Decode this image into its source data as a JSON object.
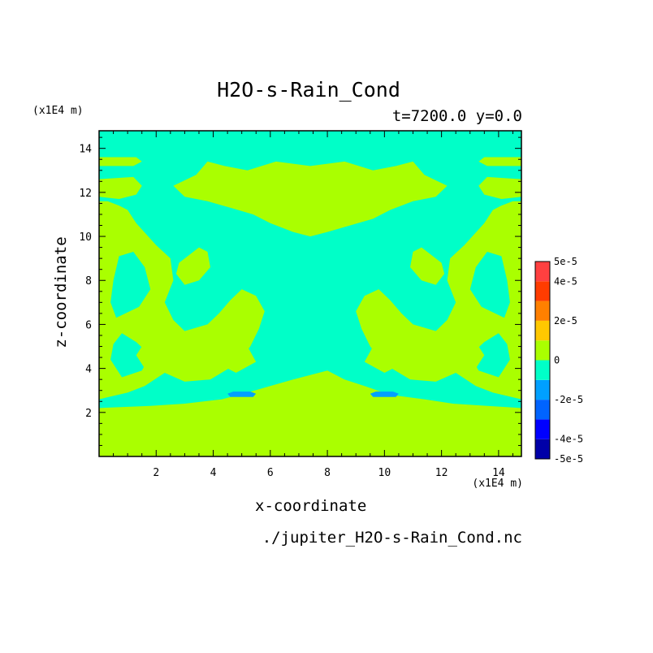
{
  "chart_data": {
    "type": "heatmap",
    "title": "H2O-s-Rain_Cond",
    "subtitle": "t=7200.0 y=0.0",
    "xlabel": "x-coordinate",
    "ylabel": "z-coordinate",
    "x_unit": "(x1E4 m)",
    "y_unit": "(x1E4 m)",
    "source_label": "./jupiter_H2O-s-Rain_Cond.nc",
    "xlim": [
      0,
      14.8
    ],
    "ylim": [
      0,
      14.8
    ],
    "xticks": [
      2,
      4,
      6,
      8,
      10,
      12,
      14
    ],
    "yticks": [
      2,
      4,
      6,
      8,
      10,
      12,
      14
    ],
    "background_value_color": "#00ffc8",
    "colorbar": {
      "levels": [
        -5e-05,
        -4e-05,
        -3e-05,
        -2e-05,
        -1e-05,
        0,
        1e-05,
        2e-05,
        3e-05,
        4e-05,
        5e-05
      ],
      "colors": [
        "#0000a8",
        "#0000ff",
        "#0064ff",
        "#00a0ff",
        "#00ffc8",
        "#aaff00",
        "#ffc800",
        "#ff8000",
        "#ff3c00",
        "#ff4040"
      ],
      "labels": [
        "-5e-5",
        "-4e-5",
        "-2e-5",
        "0",
        "2e-5",
        "4e-5",
        "5e-5"
      ],
      "label_values": [
        -5e-05,
        -4e-05,
        -2e-05,
        0,
        2e-05,
        4e-05,
        5e-05
      ]
    },
    "regions": [
      {
        "name": "bottom-band",
        "color": "#aaff00",
        "points": [
          [
            0,
            0
          ],
          [
            14.8,
            0
          ],
          [
            14.8,
            2.2
          ],
          [
            13.6,
            2.3
          ],
          [
            12.4,
            2.4
          ],
          [
            11.4,
            2.6
          ],
          [
            10.2,
            2.8
          ],
          [
            9.3,
            3.2
          ],
          [
            8.6,
            3.5
          ],
          [
            8.0,
            3.9
          ],
          [
            7.4,
            3.7
          ],
          [
            6.8,
            3.5
          ],
          [
            6.0,
            3.2
          ],
          [
            5.2,
            2.9
          ],
          [
            4.3,
            2.6
          ],
          [
            3.0,
            2.4
          ],
          [
            1.8,
            2.3
          ],
          [
            0,
            2.2
          ]
        ]
      },
      {
        "name": "left-mass",
        "color": "#aaff00",
        "points": [
          [
            0,
            2.6
          ],
          [
            1.0,
            2.9
          ],
          [
            1.6,
            3.2
          ],
          [
            2.3,
            3.8
          ],
          [
            3.0,
            3.4
          ],
          [
            3.9,
            3.5
          ],
          [
            4.8,
            4.2
          ],
          [
            5.3,
            5.0
          ],
          [
            5.6,
            5.8
          ],
          [
            5.8,
            6.6
          ],
          [
            5.5,
            7.3
          ],
          [
            5.0,
            7.6
          ],
          [
            4.6,
            7.1
          ],
          [
            4.2,
            6.5
          ],
          [
            3.8,
            6.0
          ],
          [
            3.0,
            5.7
          ],
          [
            2.6,
            6.2
          ],
          [
            2.3,
            7.0
          ],
          [
            2.6,
            8.0
          ],
          [
            2.5,
            9.0
          ],
          [
            2.0,
            9.6
          ],
          [
            1.3,
            10.6
          ],
          [
            1.0,
            11.2
          ],
          [
            0.7,
            11.4
          ],
          [
            0.3,
            11.6
          ],
          [
            0,
            11.6
          ]
        ]
      },
      {
        "name": "left-hole-1",
        "color": "#00ffc8",
        "points": [
          [
            0.8,
            3.6
          ],
          [
            1.5,
            3.9
          ],
          [
            1.8,
            4.6
          ],
          [
            1.3,
            5.2
          ],
          [
            0.8,
            5.6
          ],
          [
            0.5,
            5.1
          ],
          [
            0.4,
            4.4
          ]
        ]
      },
      {
        "name": "left-hole-2",
        "color": "#00ffc8",
        "points": [
          [
            0.6,
            6.3
          ],
          [
            1.4,
            6.8
          ],
          [
            1.8,
            7.6
          ],
          [
            1.6,
            8.6
          ],
          [
            1.2,
            9.3
          ],
          [
            0.7,
            9.1
          ],
          [
            0.5,
            8.0
          ],
          [
            0.4,
            7.0
          ]
        ]
      },
      {
        "name": "left-blob",
        "color": "#aaff00",
        "points": [
          [
            1.6,
            4.0
          ],
          [
            2.1,
            4.5
          ],
          [
            2.5,
            5.2
          ],
          [
            2.2,
            5.6
          ],
          [
            1.6,
            5.2
          ],
          [
            1.3,
            4.6
          ]
        ]
      },
      {
        "name": "center-left-blob",
        "color": "#aaff00",
        "points": [
          [
            2.8,
            8.8
          ],
          [
            3.5,
            9.5
          ],
          [
            3.8,
            9.3
          ],
          [
            3.9,
            8.6
          ],
          [
            3.5,
            8.0
          ],
          [
            3.0,
            7.8
          ],
          [
            2.7,
            8.3
          ]
        ]
      },
      {
        "name": "center-left-blob-2",
        "color": "#aaff00",
        "points": [
          [
            4.8,
            3.8
          ],
          [
            5.5,
            4.3
          ],
          [
            5.2,
            5.0
          ],
          [
            4.6,
            5.2
          ],
          [
            4.2,
            4.8
          ],
          [
            4.2,
            4.2
          ]
        ]
      },
      {
        "name": "upper-left",
        "color": "#aaff00",
        "points": [
          [
            0,
            12.6
          ],
          [
            1.2,
            12.7
          ],
          [
            1.5,
            12.3
          ],
          [
            1.3,
            11.9
          ],
          [
            0.7,
            11.7
          ],
          [
            0,
            11.8
          ]
        ]
      },
      {
        "name": "top-left-strip",
        "color": "#aaff00",
        "points": [
          [
            0,
            13.6
          ],
          [
            1.3,
            13.6
          ],
          [
            1.5,
            13.4
          ],
          [
            1.2,
            13.2
          ],
          [
            0,
            13.2
          ]
        ]
      },
      {
        "name": "top-center",
        "color": "#aaff00",
        "points": [
          [
            2.6,
            12.3
          ],
          [
            3.4,
            12.8
          ],
          [
            3.8,
            13.4
          ],
          [
            4.4,
            13.2
          ],
          [
            5.2,
            13.0
          ],
          [
            6.2,
            13.4
          ],
          [
            7.4,
            13.2
          ],
          [
            8.6,
            13.4
          ],
          [
            9.6,
            13.0
          ],
          [
            10.4,
            13.2
          ],
          [
            11.0,
            13.4
          ],
          [
            11.4,
            12.8
          ],
          [
            12.2,
            12.3
          ],
          [
            11.8,
            11.8
          ],
          [
            11.0,
            11.6
          ],
          [
            10.2,
            11.2
          ],
          [
            9.6,
            10.8
          ],
          [
            8.8,
            10.5
          ],
          [
            8.0,
            10.2
          ],
          [
            7.4,
            10.0
          ],
          [
            6.8,
            10.2
          ],
          [
            6.0,
            10.6
          ],
          [
            5.4,
            11.0
          ],
          [
            4.6,
            11.3
          ],
          [
            3.8,
            11.6
          ],
          [
            3.0,
            11.8
          ]
        ]
      },
      {
        "name": "top-right-strip",
        "color": "#aaff00",
        "points": [
          [
            14.8,
            13.6
          ],
          [
            13.5,
            13.6
          ],
          [
            13.3,
            13.4
          ],
          [
            13.6,
            13.2
          ],
          [
            14.8,
            13.2
          ]
        ]
      },
      {
        "name": "upper-right",
        "color": "#aaff00",
        "points": [
          [
            14.8,
            12.6
          ],
          [
            13.6,
            12.7
          ],
          [
            13.3,
            12.3
          ],
          [
            13.5,
            11.9
          ],
          [
            14.1,
            11.7
          ],
          [
            14.8,
            11.8
          ]
        ]
      },
      {
        "name": "right-mass",
        "color": "#aaff00",
        "points": [
          [
            14.8,
            2.6
          ],
          [
            13.8,
            2.9
          ],
          [
            13.2,
            3.2
          ],
          [
            12.5,
            3.8
          ],
          [
            11.8,
            3.4
          ],
          [
            10.9,
            3.5
          ],
          [
            10.0,
            4.2
          ],
          [
            9.5,
            5.0
          ],
          [
            9.2,
            5.8
          ],
          [
            9.0,
            6.6
          ],
          [
            9.3,
            7.3
          ],
          [
            9.8,
            7.6
          ],
          [
            10.2,
            7.1
          ],
          [
            10.6,
            6.5
          ],
          [
            11.0,
            6.0
          ],
          [
            11.8,
            5.7
          ],
          [
            12.2,
            6.2
          ],
          [
            12.5,
            7.0
          ],
          [
            12.2,
            8.0
          ],
          [
            12.3,
            9.0
          ],
          [
            12.8,
            9.6
          ],
          [
            13.5,
            10.6
          ],
          [
            13.8,
            11.2
          ],
          [
            14.1,
            11.4
          ],
          [
            14.5,
            11.6
          ],
          [
            14.8,
            11.6
          ]
        ]
      },
      {
        "name": "right-hole-1",
        "color": "#00ffc8",
        "points": [
          [
            14.0,
            3.6
          ],
          [
            13.3,
            3.9
          ],
          [
            13.0,
            4.6
          ],
          [
            13.5,
            5.2
          ],
          [
            14.0,
            5.6
          ],
          [
            14.3,
            5.1
          ],
          [
            14.4,
            4.4
          ]
        ]
      },
      {
        "name": "right-hole-2",
        "color": "#00ffc8",
        "points": [
          [
            14.2,
            6.3
          ],
          [
            13.4,
            6.8
          ],
          [
            13.0,
            7.6
          ],
          [
            13.2,
            8.6
          ],
          [
            13.6,
            9.3
          ],
          [
            14.1,
            9.1
          ],
          [
            14.3,
            8.0
          ],
          [
            14.4,
            7.0
          ]
        ]
      },
      {
        "name": "right-blob",
        "color": "#aaff00",
        "points": [
          [
            13.2,
            4.0
          ],
          [
            12.7,
            4.5
          ],
          [
            12.3,
            5.2
          ],
          [
            12.6,
            5.6
          ],
          [
            13.2,
            5.2
          ],
          [
            13.5,
            4.6
          ]
        ]
      },
      {
        "name": "center-right-blob",
        "color": "#aaff00",
        "points": [
          [
            12.0,
            8.8
          ],
          [
            11.3,
            9.5
          ],
          [
            11.0,
            9.3
          ],
          [
            10.9,
            8.6
          ],
          [
            11.3,
            8.0
          ],
          [
            11.8,
            7.8
          ],
          [
            12.1,
            8.3
          ]
        ]
      },
      {
        "name": "center-right-blob-2",
        "color": "#aaff00",
        "points": [
          [
            10.0,
            3.8
          ],
          [
            9.3,
            4.3
          ],
          [
            9.6,
            5.0
          ],
          [
            10.2,
            5.2
          ],
          [
            10.6,
            4.8
          ],
          [
            10.6,
            4.2
          ]
        ]
      },
      {
        "name": "blue-spot-left",
        "color": "#00a0ff",
        "points": [
          [
            4.6,
            2.7
          ],
          [
            5.4,
            2.7
          ],
          [
            5.5,
            2.85
          ],
          [
            5.3,
            2.95
          ],
          [
            4.7,
            2.95
          ],
          [
            4.5,
            2.85
          ]
        ]
      },
      {
        "name": "blue-spot-right",
        "color": "#00a0ff",
        "points": [
          [
            9.6,
            2.7
          ],
          [
            10.4,
            2.7
          ],
          [
            10.5,
            2.85
          ],
          [
            10.3,
            2.95
          ],
          [
            9.7,
            2.95
          ],
          [
            9.5,
            2.85
          ]
        ]
      }
    ]
  }
}
